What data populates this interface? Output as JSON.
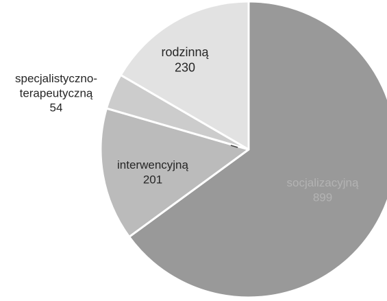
{
  "chart_data": {
    "type": "pie",
    "categories": [
      "socjalizacyjna",
      "interwencyjna",
      "specjalistyczno-terapeutyczna",
      "rodzinna"
    ],
    "values": [
      899,
      201,
      54,
      230
    ],
    "labels": [
      {
        "lines": [
          "socjalizacyjną"
        ],
        "value_text": "899"
      },
      {
        "lines": [
          "interwencyjną"
        ],
        "value_text": "201"
      },
      {
        "lines": [
          "specjalistyczno-",
          "terapeutyczną"
        ],
        "value_text": "54"
      },
      {
        "lines": [
          "rodzinną"
        ],
        "value_text": "230"
      }
    ],
    "colors": [
      "#999999",
      "#bbbbbb",
      "#cccccc",
      "#e2e2e2"
    ],
    "label_colors": [
      "#b3b3b3",
      "#262626",
      "#262626",
      "#262626"
    ],
    "start_angle_deg": 0,
    "direction": "clockwise",
    "legend": "none",
    "title": ""
  }
}
